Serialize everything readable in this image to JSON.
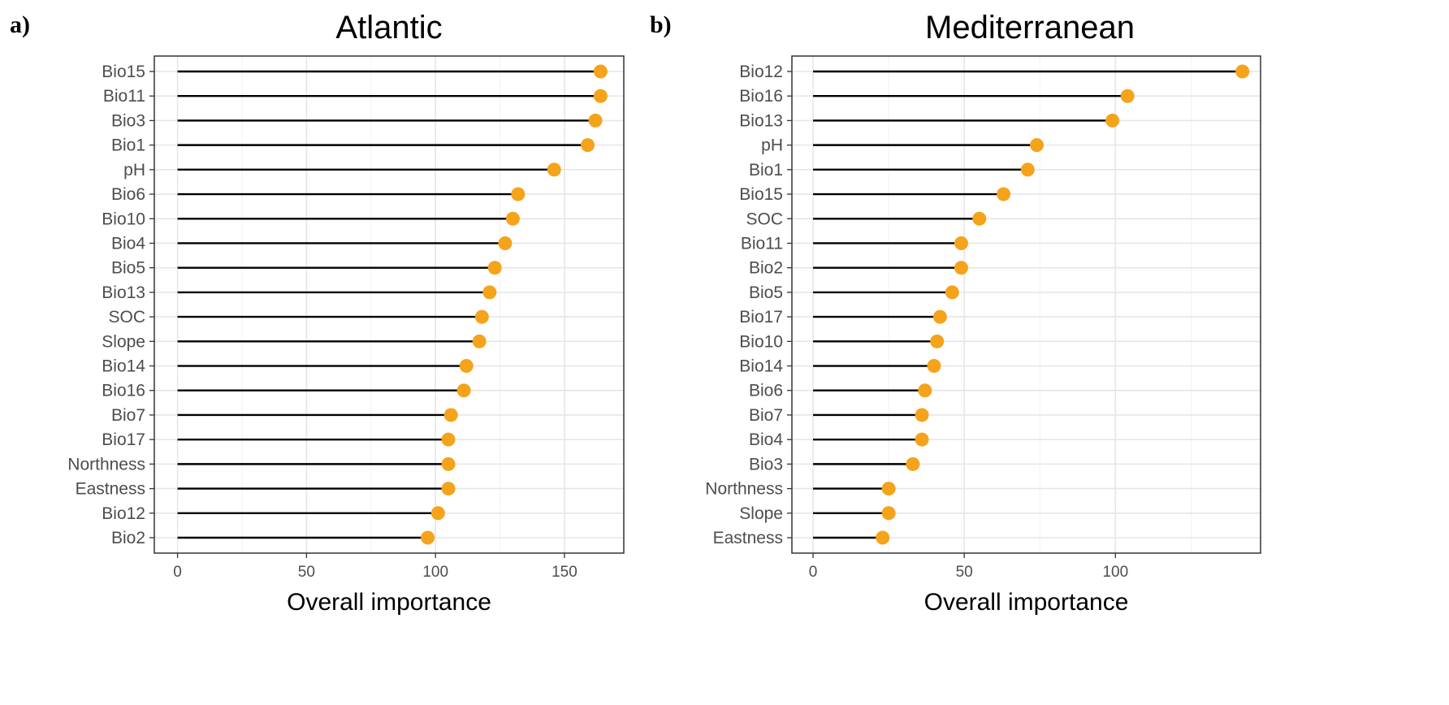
{
  "colors": {
    "point": "#f5a31b",
    "stem": "#000000",
    "grid": "#e6e6e6",
    "border": "#333333"
  },
  "chart_data": [
    {
      "type": "lollipop",
      "panel_label": "a)",
      "title": "Atlantic",
      "xlabel": "Overall importance",
      "ylabel": "",
      "xlim": [
        -9,
        173
      ],
      "x_ticks": [
        0,
        50,
        100,
        150
      ],
      "x_minor_ticks": [
        25,
        75,
        125
      ],
      "categories": [
        "Bio15",
        "Bio11",
        "Bio3",
        "Bio1",
        "pH",
        "Bio6",
        "Bio10",
        "Bio4",
        "Bio5",
        "Bio13",
        "SOC",
        "Slope",
        "Bio14",
        "Bio16",
        "Bio7",
        "Bio17",
        "Northness",
        "Eastness",
        "Bio12",
        "Bio2"
      ],
      "values": [
        164,
        164,
        162,
        159,
        146,
        132,
        130,
        127,
        123,
        121,
        118,
        117,
        112,
        111,
        106,
        105,
        105,
        105,
        101,
        97
      ],
      "grid": true
    },
    {
      "type": "lollipop",
      "panel_label": "b)",
      "title": "Mediterranean",
      "xlabel": "Overall importance",
      "ylabel": "",
      "xlim": [
        -7,
        148
      ],
      "x_ticks": [
        0,
        50,
        100
      ],
      "x_minor_ticks": [
        25,
        75,
        125
      ],
      "categories": [
        "Bio12",
        "Bio16",
        "Bio13",
        "pH",
        "Bio1",
        "Bio15",
        "SOC",
        "Bio11",
        "Bio2",
        "Bio5",
        "Bio17",
        "Bio10",
        "Bio14",
        "Bio6",
        "Bio7",
        "Bio4",
        "Bio3",
        "Northness",
        "Slope",
        "Eastness"
      ],
      "values": [
        142,
        104,
        99,
        74,
        71,
        63,
        55,
        49,
        49,
        46,
        42,
        41,
        40,
        37,
        36,
        36,
        33,
        25,
        25,
        23
      ],
      "grid": true
    }
  ]
}
